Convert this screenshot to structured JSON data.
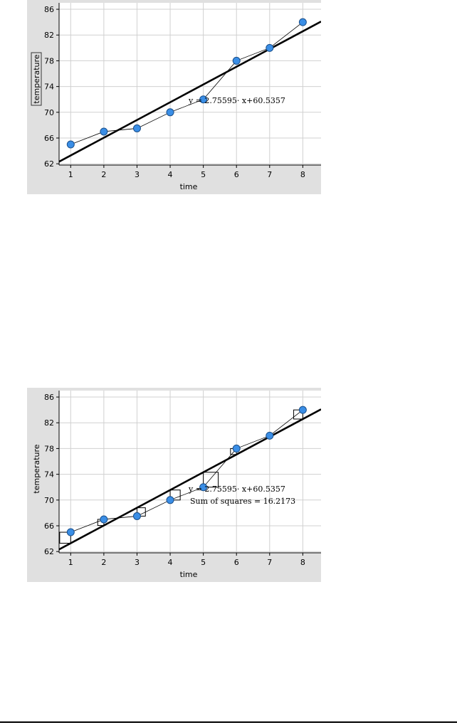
{
  "colors": {
    "panel_bg": "#e0e0e0",
    "plot_bg": "#ffffff",
    "grid": "#d0d0d0",
    "point_fill": "#3a8ee6",
    "point_stroke": "#1a4f8a",
    "regression_line": "#000000",
    "connector": "#000000"
  },
  "chart_data": [
    {
      "type": "scatter",
      "x": [
        1,
        2,
        3,
        4,
        5,
        6,
        7,
        8
      ],
      "y": [
        65,
        67,
        67.5,
        70,
        72,
        78,
        80,
        84
      ],
      "xlabel": "time",
      "ylabel": "temperature",
      "xlim": [
        0.65,
        8.55
      ],
      "ylim": [
        61.8,
        87
      ],
      "xticks": [
        "1",
        "2",
        "3",
        "4",
        "5",
        "6",
        "7",
        "8"
      ],
      "yticks": [
        "62",
        "66",
        "70",
        "74",
        "78",
        "82",
        "86"
      ],
      "grid": true,
      "connected": true,
      "regression": {
        "slope": 2.75595,
        "intercept": 60.5357
      },
      "equation": "y = 2.75595· x+60.5357",
      "show_squares": false,
      "ylabel_boxed": true
    },
    {
      "type": "scatter",
      "x": [
        1,
        2,
        3,
        4,
        5,
        6,
        7,
        8
      ],
      "y": [
        65,
        67,
        67.5,
        70,
        72,
        78,
        80,
        84
      ],
      "xlabel": "time",
      "ylabel": "temperature",
      "xlim": [
        0.65,
        8.55
      ],
      "ylim": [
        61.8,
        87
      ],
      "xticks": [
        "1",
        "2",
        "3",
        "4",
        "5",
        "6",
        "7",
        "8"
      ],
      "yticks": [
        "62",
        "66",
        "70",
        "74",
        "78",
        "82",
        "86"
      ],
      "grid": true,
      "connected": true,
      "regression": {
        "slope": 2.75595,
        "intercept": 60.5357
      },
      "equation": "y = 2.75595· x+60.5357",
      "sum_of_squares": "Sum of squares = 16.2173",
      "show_squares": true,
      "ylabel_boxed": false
    }
  ]
}
